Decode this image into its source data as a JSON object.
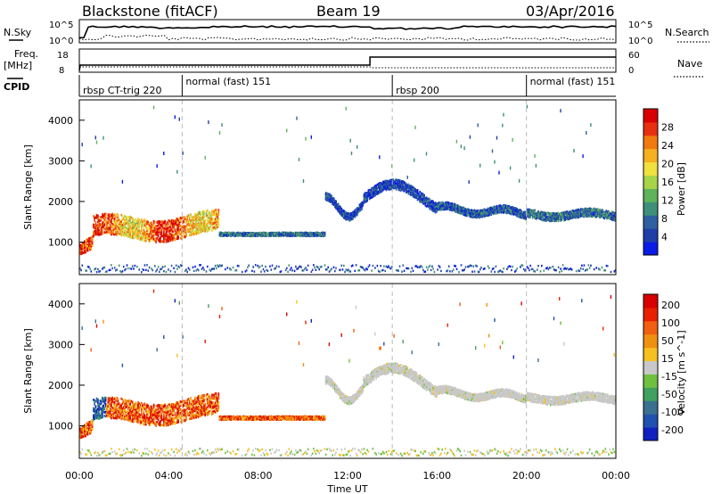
{
  "header": {
    "station": "Blackstone (fitACF)",
    "beam": "Beam 19",
    "date": "03/Apr/2016"
  },
  "nsky_panel": {
    "left_label": "N.Sky",
    "right_label": "N.Search",
    "yticks_left": [
      "10^5",
      "10^0"
    ],
    "yticks_right": [
      "10^5",
      "10^0"
    ]
  },
  "freq_panel": {
    "left_label_1": "Freq.",
    "left_label_2": "[MHz]",
    "right_label": "Nave",
    "yticks_left": [
      "18",
      "8"
    ],
    "yticks_right": [
      "60",
      "0"
    ]
  },
  "cpid_panel": {
    "label": "CPID",
    "segments": [
      {
        "start_hour": 0.0,
        "label": "rbsp CT-trig 220"
      },
      {
        "start_hour": 4.6,
        "label": "normal (fast) 151"
      },
      {
        "start_hour": 14.0,
        "label": "rbsp 200"
      },
      {
        "start_hour": 20.0,
        "label": "normal (fast) 151"
      }
    ]
  },
  "chart_data": [
    {
      "type": "heatmap",
      "name": "power",
      "ylabel": "Slant Range [km]",
      "yticks": [
        "1000",
        "2000",
        "3000",
        "4000"
      ],
      "ylim": [
        200,
        4500
      ],
      "xlim_hours": [
        0,
        24
      ],
      "colorbar": {
        "label": "Power [dB]",
        "ticks": [
          "4",
          "8",
          "12",
          "16",
          "20",
          "24",
          "28"
        ],
        "colors": [
          "#0a1be6",
          "#1f3ea8",
          "#2e5fa0",
          "#3f8f7a",
          "#5fb35a",
          "#a8d44a",
          "#f0e040",
          "#f5b020",
          "#f07a10",
          "#e83010",
          "#d80000"
        ]
      }
    },
    {
      "type": "heatmap",
      "name": "velocity",
      "ylabel": "Slant Range [km]",
      "yticks": [
        "1000",
        "2000",
        "3000",
        "4000"
      ],
      "ylim": [
        200,
        4500
      ],
      "xlim_hours": [
        0,
        24
      ],
      "xlabel": "Time UT",
      "xticks": [
        "00:00",
        "04:00",
        "08:00",
        "12:00",
        "16:00",
        "20:00",
        "00:00"
      ],
      "colorbar": {
        "label": "Velocity [m s^-1]",
        "ticks": [
          "200",
          "100",
          "50",
          "15",
          "-15",
          "-50",
          "-100",
          "-200"
        ],
        "colors": [
          "#1020c0",
          "#2050b0",
          "#3a7090",
          "#40a060",
          "#70c040",
          "#c8c8c8",
          "#f5c020",
          "#f09010",
          "#f06010",
          "#e82000",
          "#d80000"
        ]
      }
    }
  ]
}
